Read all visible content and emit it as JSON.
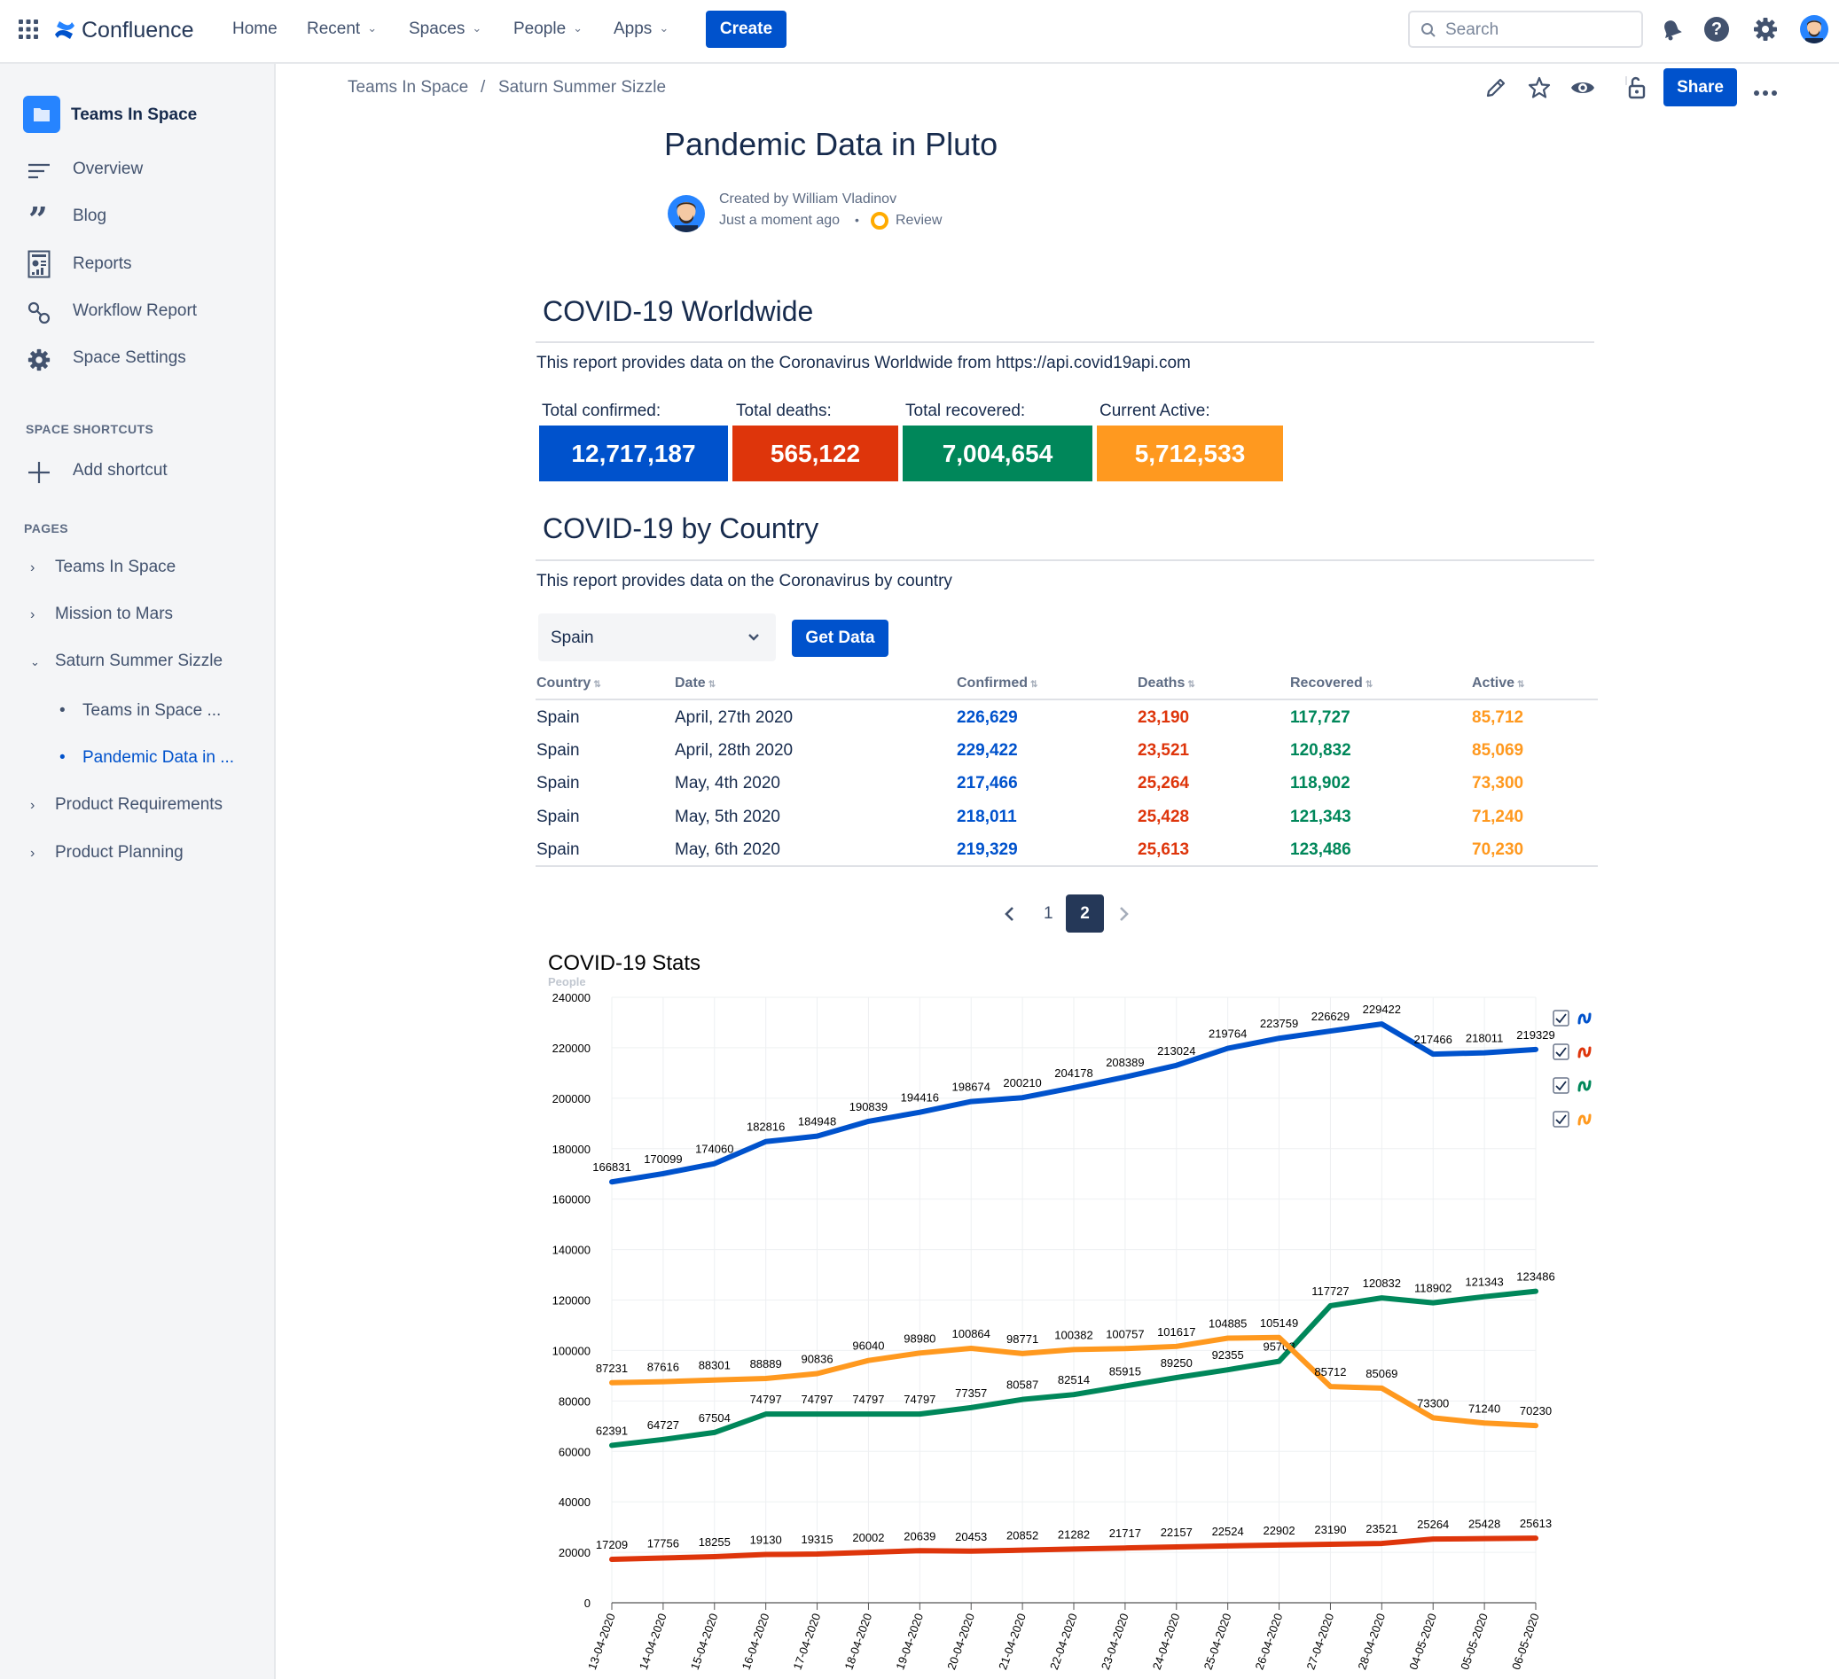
{
  "topnav": {
    "logo_text": "Confluence",
    "items": [
      "Home",
      "Recent",
      "Spaces",
      "People",
      "Apps"
    ],
    "create_label": "Create",
    "search_placeholder": "Search"
  },
  "sidebar": {
    "space_name": "Teams In Space",
    "nav": [
      "Overview",
      "Blog",
      "Reports",
      "Workflow Report",
      "Space Settings"
    ],
    "shortcuts_heading": "SPACE SHORTCUTS",
    "add_shortcut": "Add shortcut",
    "pages_heading": "PAGES",
    "pages": [
      "Teams In Space",
      "Mission to Mars",
      "Saturn Summer Sizzle",
      "Teams in Space ...",
      "Pandemic Data in ...",
      "Product Requirements",
      "Product Planning"
    ]
  },
  "breadcrumb": [
    "Teams In Space",
    "Saturn Summer Sizzle"
  ],
  "breadcrumb_sep": "/",
  "share_label": "Share",
  "page": {
    "title": "Pandemic Data in Pluto",
    "created_by": "Created by William Vladinov",
    "time": "Just a moment ago",
    "dot": "•",
    "status": "Review"
  },
  "worldwide": {
    "heading": "COVID-19 Worldwide",
    "description": "This report provides data on the Coronavirus Worldwide from https://api.covid19api.com",
    "stats": [
      {
        "label": "Total confirmed:",
        "value": "12,717,187",
        "color": "#0052CC"
      },
      {
        "label": "Total deaths:",
        "value": "565,122",
        "color": "#DE350B"
      },
      {
        "label": "Total recovered:",
        "value": "7,004,654",
        "color": "#00875A"
      },
      {
        "label": "Current Active:",
        "value": "5,712,533",
        "color": "#FF991F"
      }
    ]
  },
  "by_country": {
    "heading": "COVID-19 by Country",
    "description": "This report provides data on the Coronavirus by country",
    "selected_country": "Spain",
    "button": "Get Data",
    "columns": [
      "Country",
      "Date",
      "Confirmed",
      "Deaths",
      "Recovered",
      "Active"
    ],
    "rows": [
      [
        "Spain",
        "April, 27th 2020",
        "226,629",
        "23,190",
        "117,727",
        "85,712"
      ],
      [
        "Spain",
        "April, 28th 2020",
        "229,422",
        "23,521",
        "120,832",
        "85,069"
      ],
      [
        "Spain",
        "May, 4th 2020",
        "217,466",
        "25,264",
        "118,902",
        "73,300"
      ],
      [
        "Spain",
        "May, 5th 2020",
        "218,011",
        "25,428",
        "121,343",
        "71,240"
      ],
      [
        "Spain",
        "May, 6th 2020",
        "219,329",
        "25,613",
        "123,486",
        "70,230"
      ]
    ],
    "pagination": [
      "1",
      "2"
    ],
    "current_page": "2"
  },
  "chart_data": {
    "type": "line",
    "title": "COVID-19 Stats",
    "ylabel": "People",
    "ylim": [
      0,
      240000
    ],
    "yticks": [
      0,
      20000,
      40000,
      60000,
      80000,
      100000,
      120000,
      140000,
      160000,
      180000,
      200000,
      220000,
      240000
    ],
    "grid": true,
    "legend_position": "right",
    "x": [
      "13-04-2020",
      "14-04-2020",
      "15-04-2020",
      "16-04-2020",
      "17-04-2020",
      "18-04-2020",
      "19-04-2020",
      "20-04-2020",
      "21-04-2020",
      "22-04-2020",
      "23-04-2020",
      "24-04-2020",
      "25-04-2020",
      "26-04-2020",
      "27-04-2020",
      "28-04-2020",
      "04-05-2020",
      "05-05-2020",
      "06-05-2020"
    ],
    "series": [
      {
        "color": "#0052CC",
        "values": [
          166831,
          170099,
          174060,
          182816,
          184948,
          190839,
          194416,
          198674,
          200210,
          204178,
          208389,
          213024,
          219764,
          223759,
          226629,
          229422,
          217466,
          218011,
          219329
        ]
      },
      {
        "color": "#DE350B",
        "values": [
          17209,
          17756,
          18255,
          19130,
          19315,
          20002,
          20639,
          20453,
          20852,
          21282,
          21717,
          22157,
          22524,
          22902,
          23190,
          23521,
          25264,
          25428,
          25613
        ]
      },
      {
        "color": "#00875A",
        "values": [
          62391,
          64727,
          67504,
          74797,
          74797,
          74797,
          74797,
          77357,
          80587,
          82514,
          85915,
          89250,
          92355,
          95708,
          117727,
          120832,
          118902,
          121343,
          123486
        ]
      },
      {
        "color": "#FF991F",
        "values": [
          87231,
          87616,
          88301,
          88889,
          90836,
          96040,
          98980,
          100864,
          98771,
          100382,
          100757,
          101617,
          104885,
          105149,
          85712,
          85069,
          73300,
          71240,
          70230
        ]
      }
    ]
  }
}
